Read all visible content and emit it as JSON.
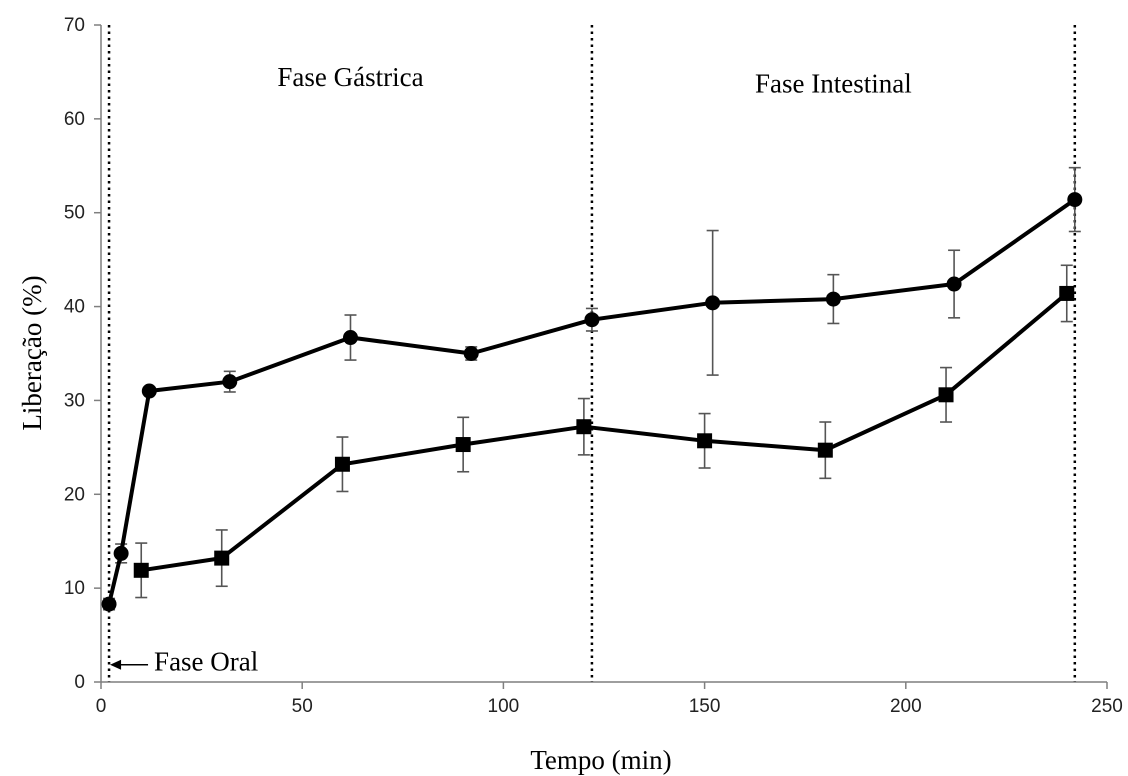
{
  "chart_data": {
    "type": "line",
    "xlabel": "Tempo (min)",
    "ylabel": "Liberação (%)",
    "xlim": [
      0,
      250
    ],
    "ylim": [
      0,
      70
    ],
    "xticks": [
      0,
      50,
      100,
      150,
      200,
      250
    ],
    "yticks": [
      0,
      10,
      20,
      30,
      40,
      50,
      60,
      70
    ],
    "grid": false,
    "phase_boundaries": [
      2,
      122,
      242
    ],
    "annotations": [
      {
        "text": "Fase Gástrica",
        "x": 62,
        "y": 63.5
      },
      {
        "text": "Fase Intestinal",
        "x": 182,
        "y": 62.8
      },
      {
        "text": "Fase Oral",
        "x": 2,
        "y": 1.2
      }
    ],
    "series": [
      {
        "marker": "circle",
        "points": [
          {
            "x": 2,
            "y": 8.3,
            "err": 0.6
          },
          {
            "x": 5,
            "y": 13.7,
            "err": 1.0
          },
          {
            "x": 12,
            "y": 31.0,
            "err": 0.3
          },
          {
            "x": 32,
            "y": 32.0,
            "err": 1.1
          },
          {
            "x": 62,
            "y": 36.7,
            "err": 2.4
          },
          {
            "x": 92,
            "y": 35.0,
            "err": 0.7
          },
          {
            "x": 122,
            "y": 38.6,
            "err": 1.2
          },
          {
            "x": 152,
            "y": 40.4,
            "err": 7.7
          },
          {
            "x": 182,
            "y": 40.8,
            "err": 2.6
          },
          {
            "x": 212,
            "y": 42.4,
            "err": 3.6
          },
          {
            "x": 242,
            "y": 51.4,
            "err": 3.4
          }
        ]
      },
      {
        "marker": "square",
        "points": [
          {
            "x": 10,
            "y": 11.9,
            "err": 2.9
          },
          {
            "x": 30,
            "y": 13.2,
            "err": 3.0
          },
          {
            "x": 60,
            "y": 23.2,
            "err": 2.9
          },
          {
            "x": 90,
            "y": 25.3,
            "err": 2.9
          },
          {
            "x": 120,
            "y": 27.2,
            "err": 3.0
          },
          {
            "x": 150,
            "y": 25.7,
            "err": 2.9
          },
          {
            "x": 180,
            "y": 24.7,
            "err": 3.0
          },
          {
            "x": 210,
            "y": 30.6,
            "err": 2.9
          },
          {
            "x": 240,
            "y": 41.4,
            "err": 3.0
          }
        ]
      }
    ]
  }
}
